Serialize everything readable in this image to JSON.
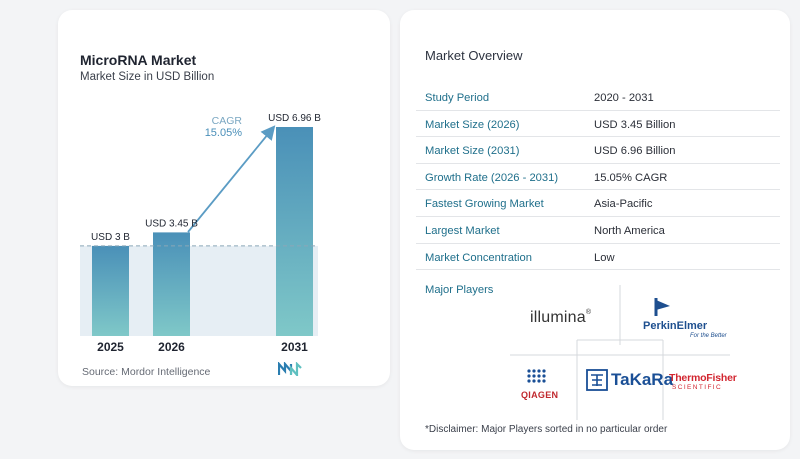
{
  "chart_data": {
    "type": "bar",
    "title": "MicroRNA Market",
    "subtitle": "Market Size in USD Billion",
    "categories": [
      "2025",
      "2026",
      "2031"
    ],
    "values": [
      3.0,
      3.45,
      6.96
    ],
    "data_labels": [
      "USD 3 B",
      "USD 3.45 B",
      "USD 6.96 B"
    ],
    "ylim": [
      0,
      7.0
    ],
    "grid": false,
    "reference_line_value": 3.0,
    "bar_color_top": "#4a90b8",
    "bar_color_bottom": "#7fc8c8",
    "annotation": {
      "label": "CAGR",
      "value": "15.05%"
    },
    "source": "Source:  Mordor Intelligence"
  },
  "overview": {
    "title": "Market Overview",
    "rows": [
      {
        "label": "Study Period",
        "value": "2020 - 2031"
      },
      {
        "label": "Market Size (2026)",
        "value": "USD 3.45 Billion"
      },
      {
        "label": "Market Size (2031)",
        "value": "USD 6.96 Billion"
      },
      {
        "label": "Growth Rate (2026 - 2031)",
        "value": "15.05% CAGR"
      },
      {
        "label": "Fastest Growing Market",
        "value": "Asia-Pacific"
      },
      {
        "label": "Largest Market",
        "value": "North America"
      },
      {
        "label": "Market Concentration",
        "value": "Low"
      }
    ],
    "players_title": "Major Players",
    "players": {
      "illumina": "illumina",
      "perkinelmer": "PerkinElmer",
      "perkinelmer_tagline": "For the Better",
      "qiagen": "QIAGEN",
      "takara": "TaKaRa",
      "thermo_line1": "ThermoFisher",
      "thermo_line2": "SCIENTIFIC"
    },
    "disclaimer": "*Disclaimer: Major Players sorted in no particular order"
  },
  "colors": {
    "label_teal": "#1f6f8b",
    "arrow": "#5b9cc4"
  }
}
